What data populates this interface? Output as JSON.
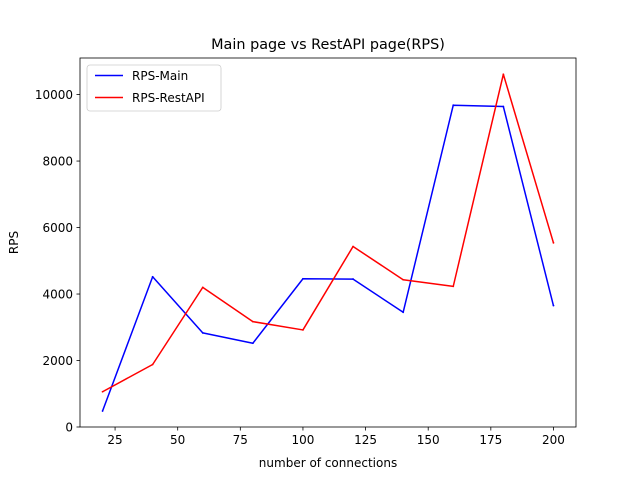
{
  "chart_data": {
    "type": "line",
    "title": "Main page vs RestAPI page(RPS)",
    "xlabel": "number of connections",
    "ylabel": "RPS",
    "xlim": [
      11,
      209
    ],
    "ylim": [
      0,
      11100
    ],
    "xticks": [
      25,
      50,
      75,
      100,
      125,
      150,
      175,
      200
    ],
    "yticks": [
      0,
      2000,
      4000,
      6000,
      8000,
      10000
    ],
    "grid": false,
    "legend_position": "top-left",
    "x": [
      20,
      40,
      60,
      80,
      100,
      120,
      140,
      160,
      180,
      200
    ],
    "series": [
      {
        "name": "RPS-Main",
        "color": "#0000ff",
        "values": [
          480,
          4520,
          2830,
          2520,
          4460,
          4450,
          3450,
          9680,
          9640,
          3650
        ]
      },
      {
        "name": "RPS-RestAPI",
        "color": "#ff0000",
        "values": [
          1060,
          1880,
          4200,
          3170,
          2920,
          5430,
          4430,
          4230,
          10610,
          5540
        ]
      }
    ]
  }
}
